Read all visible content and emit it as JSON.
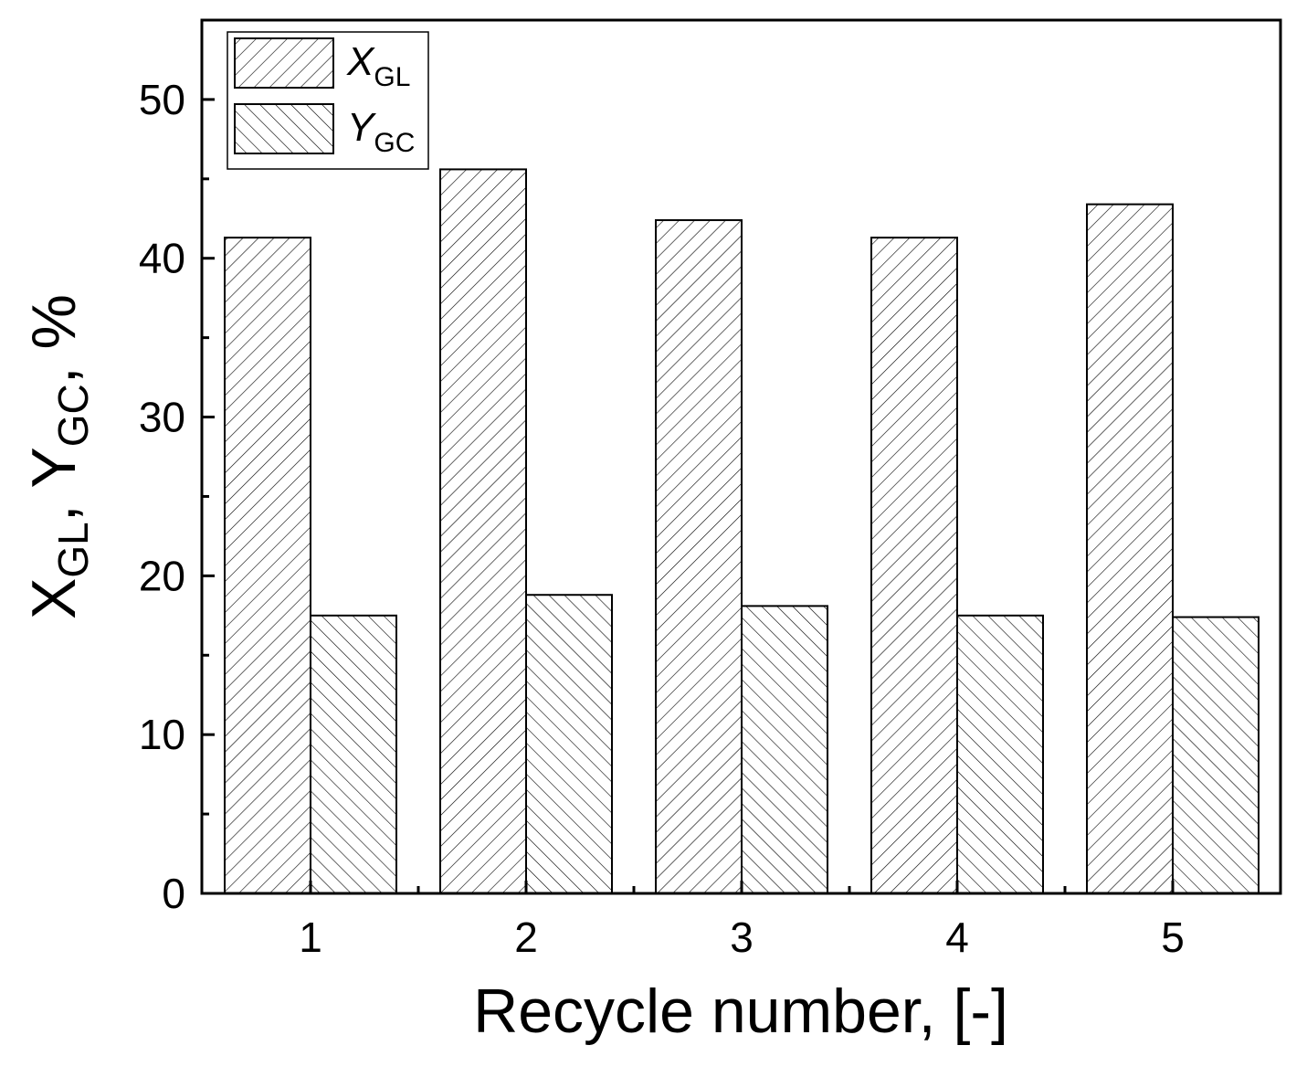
{
  "chart_data": {
    "type": "bar",
    "categories": [
      "1",
      "2",
      "3",
      "4",
      "5"
    ],
    "series": [
      {
        "name": "X",
        "subscript": "GL",
        "values": [
          41.3,
          45.6,
          42.4,
          41.3,
          43.4
        ],
        "hatch": "forward-diagonal"
      },
      {
        "name": "Y",
        "subscript": "GC",
        "values": [
          17.5,
          18.8,
          18.1,
          17.5,
          17.4
        ],
        "hatch": "backward-diagonal"
      }
    ],
    "title": "",
    "xlabel": "Recycle number, [-]",
    "ylabel": {
      "parts": [
        {
          "text": "X",
          "style": "main"
        },
        {
          "text": "GL",
          "style": "sub"
        },
        {
          "text": ", ",
          "style": "main"
        },
        {
          "text": "Y",
          "style": "main"
        },
        {
          "text": "GC",
          "style": "sub"
        },
        {
          "text": ", %",
          "style": "main"
        }
      ]
    },
    "ylim": [
      0,
      55
    ],
    "yticks": [
      0,
      10,
      20,
      30,
      40,
      50
    ],
    "yticks_minor": [
      5,
      15,
      25,
      35,
      45
    ],
    "grid": false,
    "legend_position": "top-left"
  }
}
